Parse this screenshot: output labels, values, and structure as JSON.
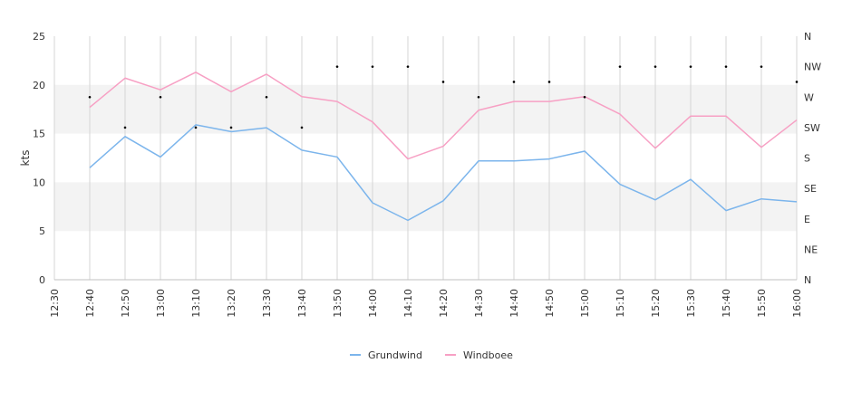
{
  "chart_data": {
    "type": "line",
    "x": [
      "12:40",
      "12:50",
      "13:00",
      "13:10",
      "13:20",
      "13:30",
      "13:40",
      "13:50",
      "14:00",
      "14:10",
      "14:20",
      "14:30",
      "14:40",
      "14:50",
      "15:00",
      "15:10",
      "15:20",
      "15:30",
      "15:40",
      "15:50",
      "16:00"
    ],
    "x_tick_labels": [
      "12:30",
      "12:40",
      "12:50",
      "13:00",
      "13:10",
      "13:20",
      "13:30",
      "13:40",
      "13:50",
      "14:00",
      "14:10",
      "14:20",
      "14:30",
      "14:40",
      "14:50",
      "15:00",
      "15:10",
      "15:20",
      "15:30",
      "15:40",
      "15:50",
      "16:00"
    ],
    "ylabel": "kts",
    "ylim": [
      0,
      25
    ],
    "y_ticks": [
      0,
      5,
      10,
      15,
      20,
      25
    ],
    "y2_ticks": [
      "N",
      "NE",
      "E",
      "SE",
      "S",
      "SW",
      "W",
      "NW",
      "N"
    ],
    "series": [
      {
        "name": "Grundwind",
        "color": "#7cb5ec",
        "values": [
          11.5,
          14.7,
          12.6,
          15.9,
          15.2,
          15.6,
          13.3,
          12.6,
          7.9,
          6.1,
          8.1,
          12.2,
          12.2,
          12.4,
          13.2,
          9.8,
          8.2,
          10.3,
          7.1,
          8.3,
          8.0
        ]
      },
      {
        "name": "Windboee",
        "color": "#f7a0c4",
        "values": [
          17.7,
          20.7,
          19.5,
          21.3,
          19.3,
          21.1,
          18.8,
          18.3,
          16.2,
          12.4,
          13.7,
          17.4,
          18.3,
          18.3,
          18.8,
          17.0,
          13.5,
          16.8,
          16.8,
          13.6,
          16.4
        ]
      },
      {
        "name": "direction",
        "type": "scatter",
        "axis": "right",
        "values": [
          "W",
          "SW",
          "W",
          "SW",
          "SW",
          "W",
          "SW",
          "NW",
          "NW",
          "NW",
          "WNW",
          "W",
          "WNW",
          "WNW",
          "W",
          "NW",
          "NW",
          "NW",
          "NW",
          "NW",
          "WNW"
        ]
      }
    ],
    "grid": true,
    "legend": "bottom-center"
  }
}
